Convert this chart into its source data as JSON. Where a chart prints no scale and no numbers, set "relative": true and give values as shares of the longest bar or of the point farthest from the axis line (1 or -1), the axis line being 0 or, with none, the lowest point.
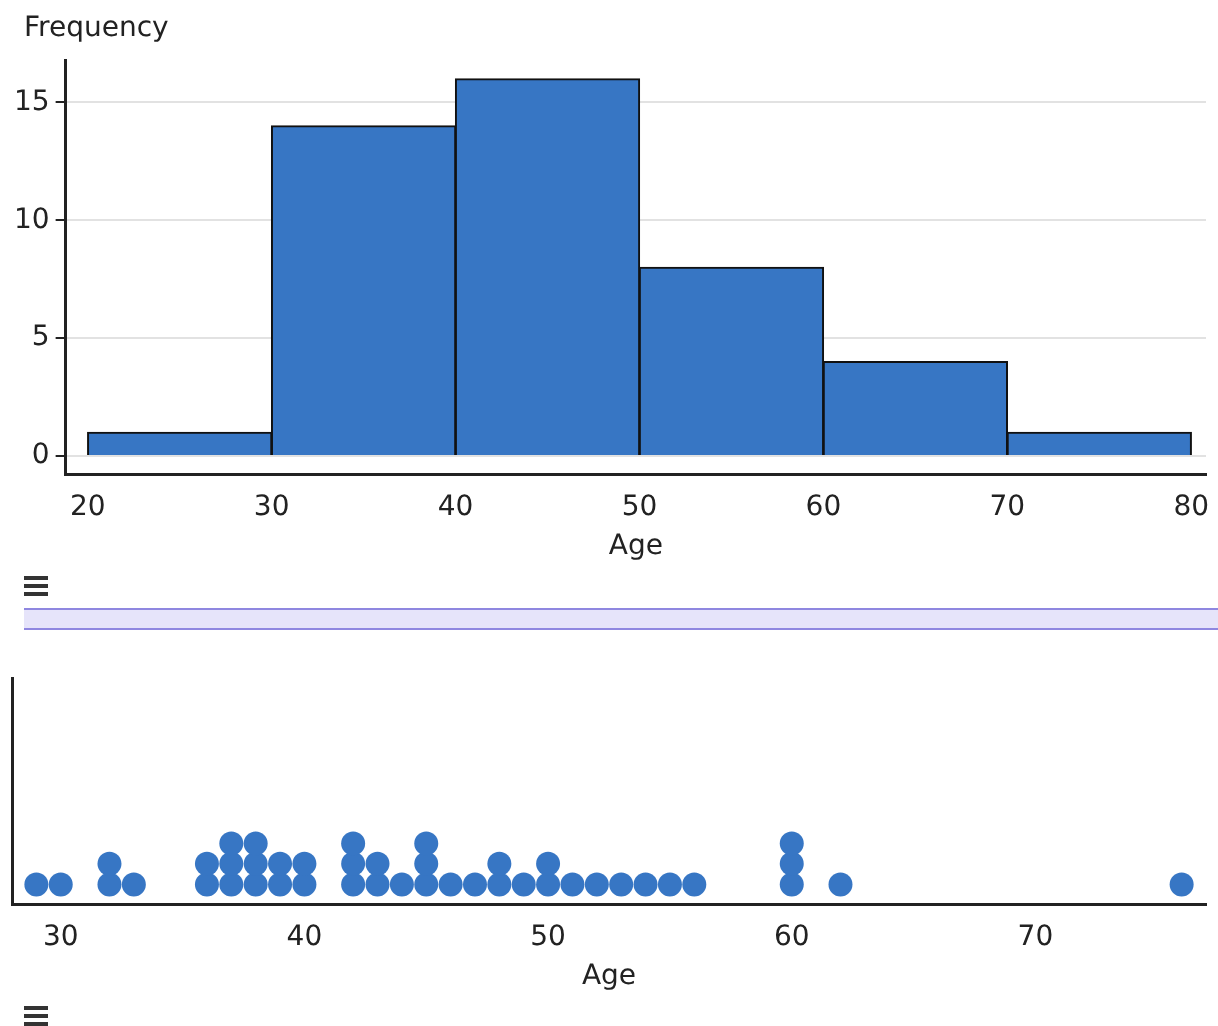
{
  "chart_data": [
    {
      "type": "histogram",
      "ylabel": "Frequency",
      "xlabel": "Age",
      "bins": [
        20,
        30,
        40,
        50,
        60,
        70,
        80
      ],
      "values": [
        1,
        14,
        16,
        8,
        4,
        1
      ],
      "color": "#3776c4",
      "xlim": [
        18.8,
        80.8
      ],
      "xticks": [
        20,
        30,
        40,
        50,
        60,
        70,
        80
      ],
      "ylim": [
        -0.8,
        16.8
      ],
      "yticks": [
        0,
        5,
        10,
        15
      ],
      "grid": "y",
      "legend": false
    },
    {
      "type": "scatter",
      "xlabel": "Age",
      "relative": true,
      "marker": "circle",
      "grid": false,
      "legend": false,
      "xlim": [
        28,
        77
      ],
      "xticks": [
        30,
        40,
        50,
        60,
        70
      ],
      "series": [
        {
          "color": "#3776c4",
          "x": [
            29,
            30,
            32,
            32,
            33,
            36,
            36,
            37,
            37,
            37,
            38,
            38,
            38,
            39,
            39,
            40,
            40,
            42,
            42,
            42,
            43,
            43,
            44,
            45,
            45,
            45,
            46,
            47,
            48,
            48,
            49,
            50,
            50,
            51,
            52,
            53,
            54,
            55,
            56,
            60,
            60,
            60,
            62,
            76
          ],
          "values": [
            0.33,
            0.33,
            0.33,
            0.67,
            0.33,
            0.33,
            0.67,
            0.33,
            0.67,
            1,
            0.33,
            0.67,
            1,
            0.33,
            0.67,
            0.33,
            0.67,
            0.33,
            0.67,
            1,
            0.33,
            0.67,
            0.33,
            0.33,
            0.67,
            1,
            0.33,
            0.33,
            0.33,
            0.67,
            0.33,
            0.33,
            0.67,
            0.33,
            0.33,
            0.33,
            0.33,
            0.33,
            0.33,
            0.33,
            0.67,
            1,
            0.33,
            0.33
          ]
        }
      ]
    }
  ]
}
